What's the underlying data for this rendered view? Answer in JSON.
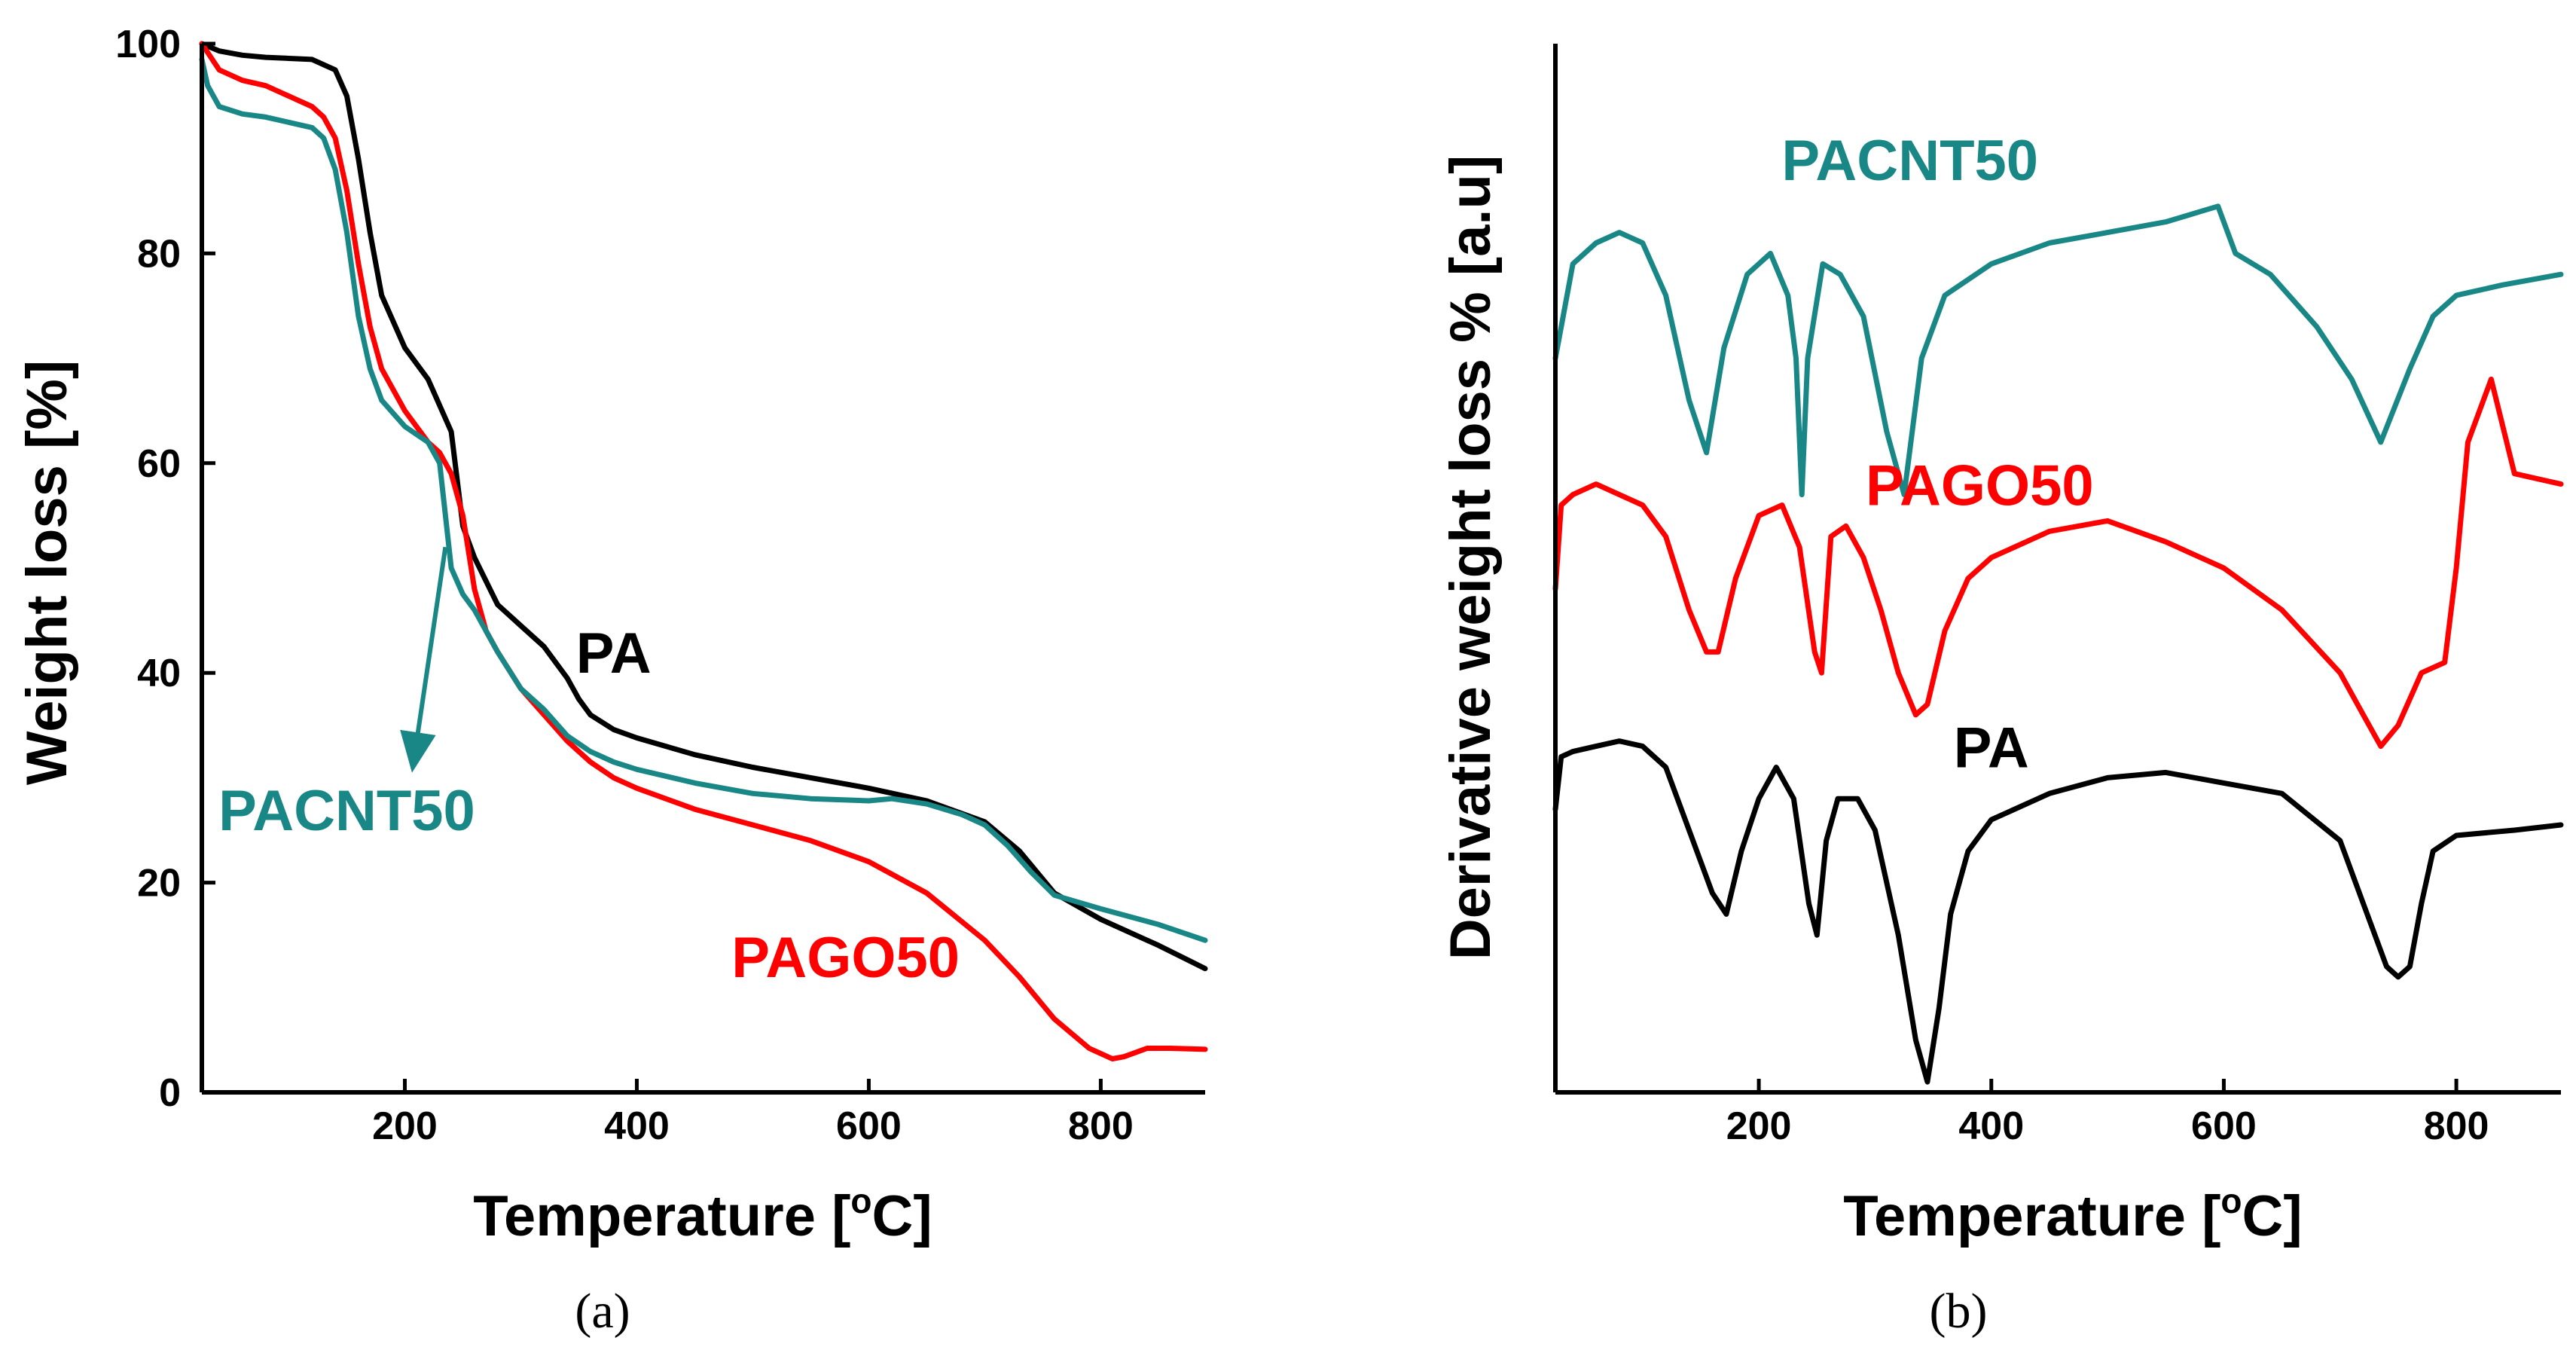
{
  "chart_data": [
    {
      "panel": "(a)",
      "type": "line",
      "xlabel": "Temperature [°C]",
      "xlabel_parts": {
        "pre": "Temperature [",
        "sup": "o",
        "post": "C]"
      },
      "ylabel": "Weight loss [%]",
      "xlim": [
        25,
        890
      ],
      "ylim": [
        0,
        100
      ],
      "xticks": [
        200,
        400,
        600,
        800
      ],
      "yticks": [
        0,
        20,
        40,
        60,
        80,
        100
      ],
      "grid": false,
      "annotations": [
        {
          "text": "PA",
          "series": "PA",
          "x": 380,
          "y": 40
        },
        {
          "text": "PACNT50",
          "series": "PACNT50",
          "x": 150,
          "y": 25,
          "arrow_to": [
            235,
            52
          ]
        },
        {
          "text": "PAGO50",
          "series": "PAGO50",
          "x": 580,
          "y": 11
        }
      ],
      "series": [
        {
          "name": "PA",
          "color": "#000000",
          "x": [
            25,
            40,
            60,
            80,
            100,
            120,
            140,
            150,
            160,
            170,
            180,
            200,
            220,
            240,
            250,
            260,
            280,
            300,
            320,
            340,
            350,
            360,
            380,
            400,
            450,
            500,
            550,
            600,
            650,
            700,
            730,
            760,
            800,
            850,
            890
          ],
          "y": [
            100,
            99.3,
            98.9,
            98.7,
            98.6,
            98.5,
            97.5,
            95,
            89,
            82,
            76,
            71,
            68,
            63,
            54,
            51,
            46.5,
            44.5,
            42.5,
            39.5,
            37.5,
            36,
            34.6,
            33.8,
            32.2,
            31,
            30,
            29,
            27.8,
            25.8,
            23,
            19,
            16.5,
            14,
            11.8
          ]
        },
        {
          "name": "PAGO50",
          "color": "#ff0000",
          "x": [
            25,
            40,
            60,
            80,
            100,
            120,
            130,
            140,
            150,
            160,
            170,
            180,
            200,
            220,
            230,
            240,
            250,
            260,
            270,
            280,
            300,
            320,
            340,
            360,
            380,
            400,
            450,
            500,
            550,
            600,
            650,
            700,
            730,
            760,
            790,
            810,
            820,
            840,
            860,
            890
          ],
          "y": [
            100,
            97.5,
            96.5,
            96,
            95,
            94,
            93,
            91,
            86,
            79,
            73,
            69,
            65,
            62,
            61,
            59,
            55,
            48,
            44,
            42,
            38.5,
            36,
            33.5,
            31.5,
            30,
            29,
            27,
            25.5,
            24,
            22,
            19,
            14.5,
            11,
            7,
            4.2,
            3.2,
            3.4,
            4.2,
            4.2,
            4.1
          ]
        },
        {
          "name": "PACNT50",
          "color": "#1a8787",
          "x": [
            25,
            30,
            40,
            60,
            80,
            100,
            120,
            130,
            140,
            150,
            160,
            170,
            180,
            200,
            220,
            230,
            240,
            250,
            260,
            270,
            280,
            300,
            320,
            340,
            360,
            380,
            400,
            450,
            500,
            550,
            600,
            620,
            650,
            680,
            700,
            720,
            740,
            760,
            800,
            850,
            890
          ],
          "y": [
            98.5,
            96,
            94,
            93.3,
            93,
            92.5,
            92,
            91,
            88,
            82,
            74,
            69,
            66,
            63.5,
            62,
            60,
            50,
            47.5,
            46,
            44,
            42,
            38.5,
            36.5,
            34,
            32.5,
            31.5,
            30.8,
            29.5,
            28.5,
            28,
            27.8,
            28,
            27.5,
            26.5,
            25.5,
            23.5,
            21,
            18.8,
            17.5,
            16,
            14.5
          ]
        }
      ]
    },
    {
      "panel": "(b)",
      "type": "line",
      "xlabel": "Temperature [°C]",
      "xlabel_parts": {
        "pre": "Temperature [",
        "sup": "o",
        "post": "C]"
      },
      "ylabel": "Derivative weight loss % [a.u]",
      "xlim": [
        25,
        890
      ],
      "ylim": [
        0,
        100
      ],
      "xticks": [
        200,
        400,
        600,
        800
      ],
      "yticks": [],
      "grid": false,
      "annotations": [
        {
          "text": "PACNT50",
          "series": "PACNT50",
          "x": 330,
          "y": 87
        },
        {
          "text": "PAGO50",
          "series": "PAGO50",
          "x": 390,
          "y": 56
        },
        {
          "text": "PA",
          "series": "PA",
          "x": 400,
          "y": 31
        }
      ],
      "series": [
        {
          "name": "PACNT50",
          "color": "#1a8787",
          "x": [
            25,
            40,
            60,
            80,
            100,
            120,
            140,
            155,
            170,
            190,
            210,
            225,
            232,
            237,
            242,
            255,
            270,
            290,
            310,
            325,
            340,
            360,
            400,
            450,
            500,
            550,
            580,
            595,
            610,
            640,
            680,
            710,
            735,
            760,
            780,
            800,
            840,
            890
          ],
          "y": [
            70,
            79,
            81,
            82,
            81,
            76,
            66,
            61,
            71,
            78,
            80,
            76,
            70,
            57,
            70,
            79,
            78,
            74,
            63,
            57,
            70,
            76,
            79,
            81,
            82,
            83,
            84,
            84.5,
            80,
            78,
            73,
            68,
            62,
            69,
            74,
            76,
            77,
            78
          ]
        },
        {
          "name": "PAGO50",
          "color": "#ff0000",
          "x": [
            25,
            30,
            40,
            60,
            80,
            100,
            120,
            140,
            155,
            165,
            180,
            200,
            220,
            235,
            248,
            254,
            262,
            275,
            290,
            305,
            320,
            335,
            345,
            360,
            380,
            400,
            450,
            500,
            550,
            600,
            650,
            700,
            720,
            735,
            750,
            770,
            790,
            800,
            810,
            830,
            850,
            890
          ],
          "y": [
            48,
            56,
            57,
            58,
            57,
            56,
            53,
            46,
            42,
            42,
            49,
            55,
            56,
            52,
            42,
            40,
            53,
            54,
            51,
            46,
            40,
            36,
            37,
            44,
            49,
            51,
            53.5,
            54.5,
            52.5,
            50,
            46,
            40,
            36,
            33,
            35,
            40,
            41,
            50,
            62,
            68,
            59,
            58
          ]
        },
        {
          "name": "PA",
          "color": "#000000",
          "x": [
            25,
            30,
            40,
            60,
            80,
            100,
            120,
            140,
            160,
            172,
            185,
            200,
            215,
            230,
            243,
            250,
            258,
            268,
            285,
            300,
            320,
            335,
            345,
            355,
            365,
            380,
            400,
            450,
            500,
            550,
            600,
            650,
            700,
            720,
            740,
            750,
            760,
            770,
            780,
            800,
            850,
            890
          ],
          "y": [
            27,
            32,
            32.5,
            33,
            33.5,
            33,
            31,
            25,
            19,
            17,
            23,
            28,
            31,
            28,
            18,
            15,
            24,
            28,
            28,
            25,
            15,
            5,
            1,
            8,
            17,
            23,
            26,
            28.5,
            30,
            30.5,
            29.5,
            28.5,
            24,
            18,
            12,
            11,
            12,
            18,
            23,
            24.5,
            25,
            25.5
          ]
        }
      ]
    }
  ]
}
